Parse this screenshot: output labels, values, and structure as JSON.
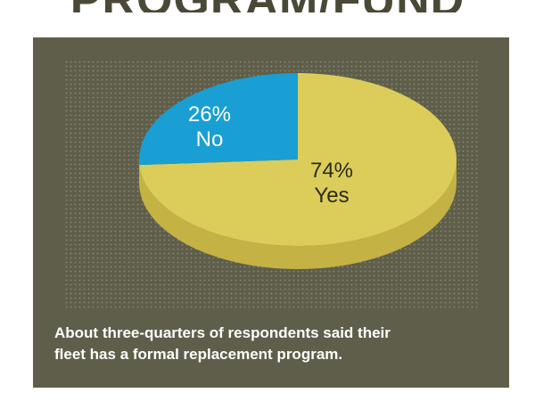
{
  "header": {
    "title": "PROGRAM/FUND"
  },
  "caption": {
    "line1": "About three-quarters of respondents said their",
    "line2": "fleet has a formal replacement program."
  },
  "colors": {
    "panel_background": "#5e5e4a",
    "dot_pattern": "#8a8a74",
    "yes_top": "#dccd5a",
    "yes_side": "#c4b244",
    "no_top": "#199fd3",
    "yes_label": "#2a2a1e",
    "no_label": "#ffffff"
  },
  "chart_data": {
    "type": "pie",
    "style": "3d",
    "slices": [
      {
        "label": "No",
        "value": 26,
        "percent_label": "26%"
      },
      {
        "label": "Yes",
        "value": 74,
        "percent_label": "74%"
      }
    ]
  }
}
